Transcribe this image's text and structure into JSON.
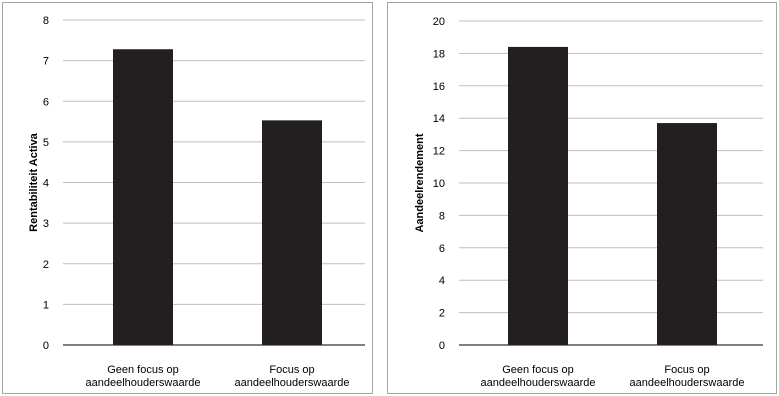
{
  "chart_data": [
    {
      "type": "bar",
      "categories": [
        [
          "Geen focus op",
          "aandeelhouderswaarde"
        ],
        [
          "Focus op",
          "aandeelhouderswaarde"
        ]
      ],
      "values": [
        7.28,
        5.53
      ],
      "ylabel": "Rentabiliteit Activa",
      "ylim": [
        0,
        8
      ],
      "yticks": [
        0,
        1,
        2,
        3,
        4,
        5,
        6,
        7,
        8
      ],
      "grid": true,
      "bar_color": "#231f20"
    },
    {
      "type": "bar",
      "categories": [
        [
          "Geen focus op",
          "aandeelhouderswaarde"
        ],
        [
          "Focus op",
          "aandeelhouderswaarde"
        ]
      ],
      "values": [
        18.4,
        13.7
      ],
      "ylabel": "Aandeelrendement",
      "ylim": [
        0,
        20
      ],
      "yticks": [
        0,
        2,
        4,
        6,
        8,
        10,
        12,
        14,
        16,
        18,
        20
      ],
      "grid": true,
      "bar_color": "#231f20"
    }
  ]
}
